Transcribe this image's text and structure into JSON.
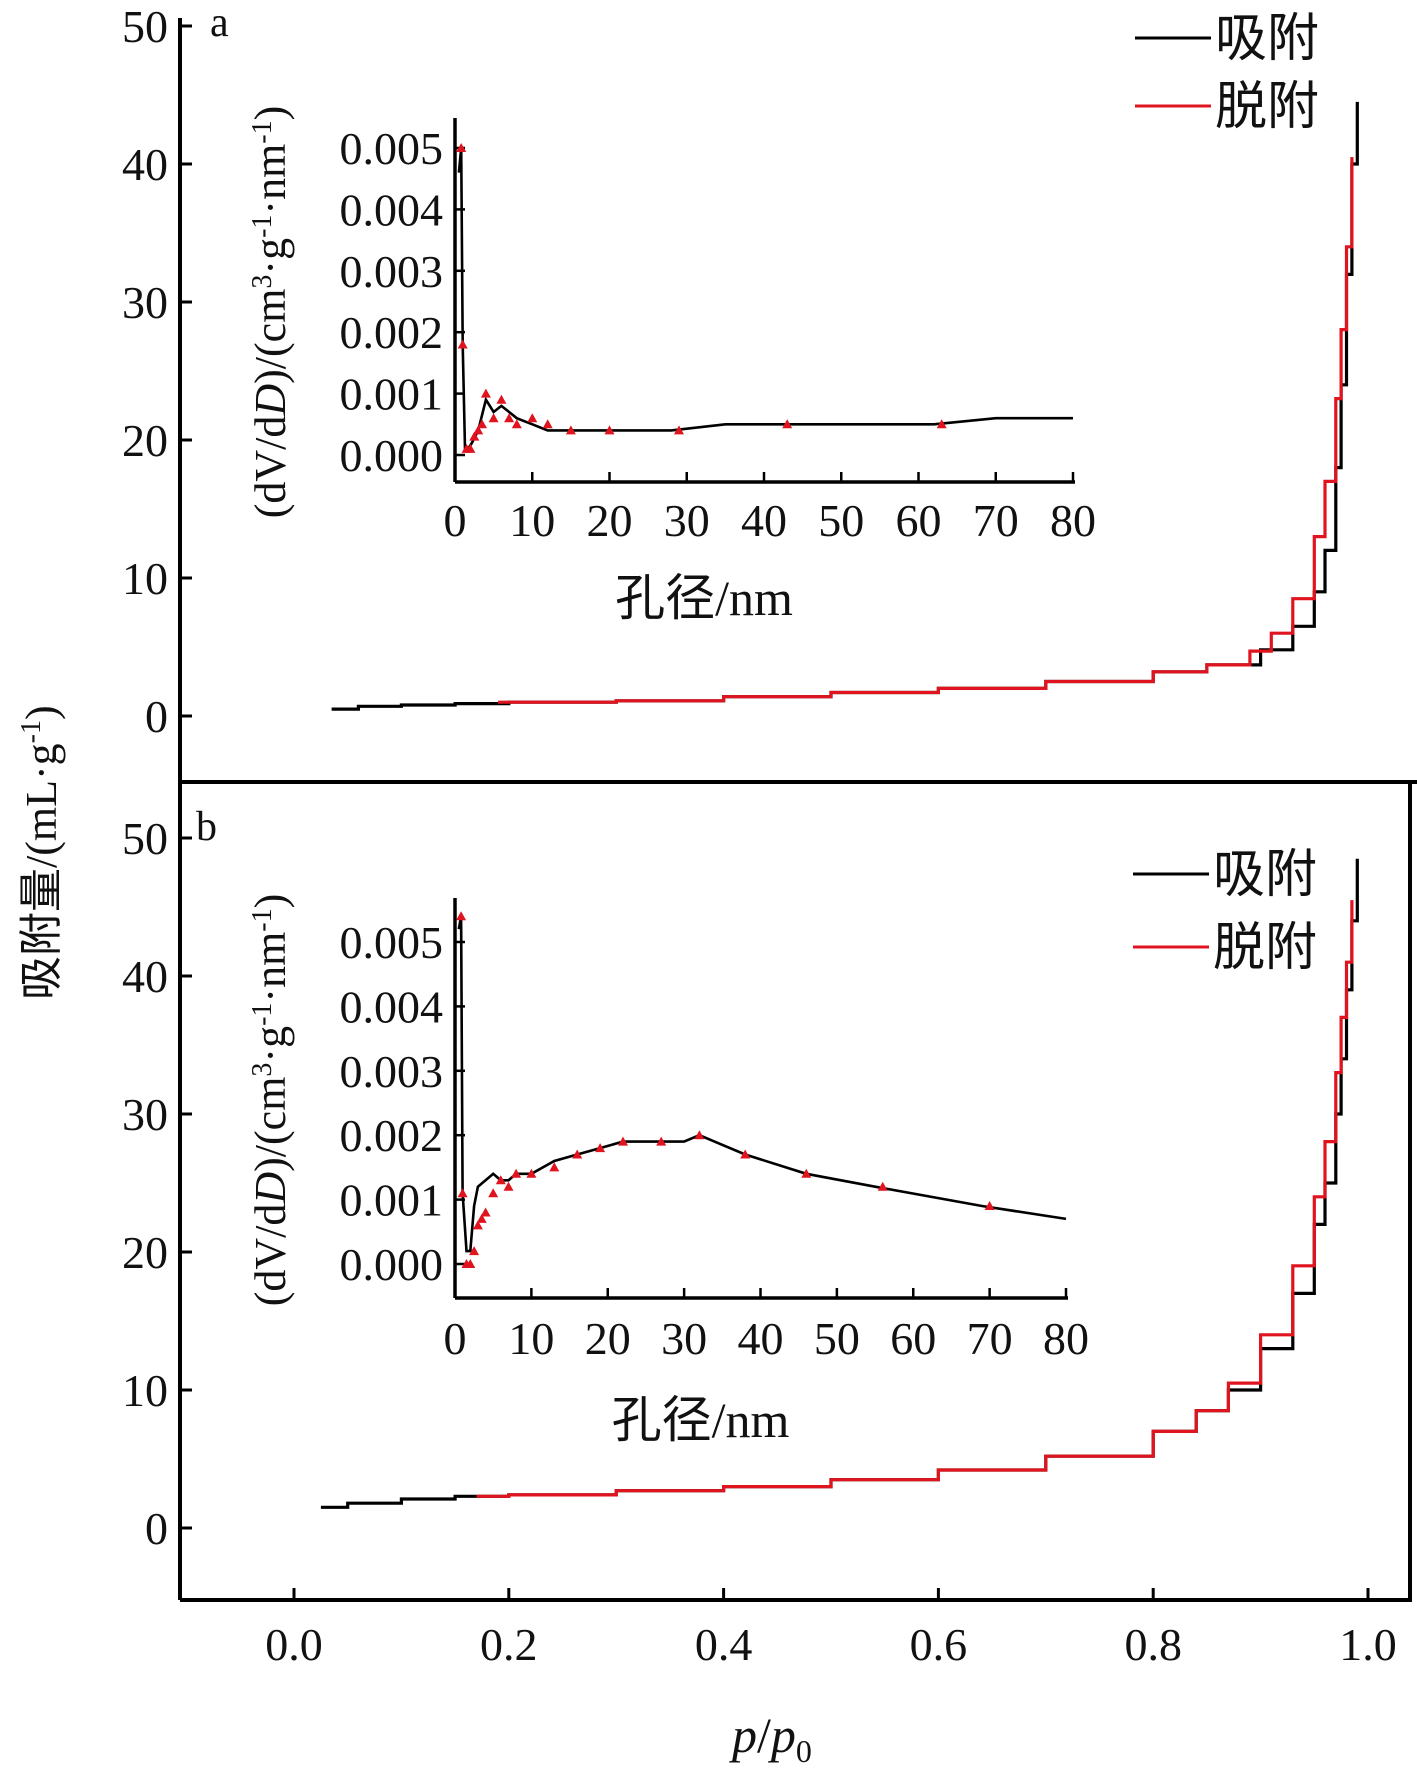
{
  "colors": {
    "adsorption": "#000000",
    "desorption": "#e0141e",
    "axis": "#000000"
  },
  "y_axis_title": "吸附量/(mL·g",
  "y_axis_title_sup": "-1",
  "y_axis_title_close": ")",
  "x_axis_title_p": "p",
  "x_axis_title_slash": "/",
  "x_axis_title_p0": "p",
  "x_axis_title_sub": "0",
  "inset_y_title_parts": [
    "(dV/d",
    "D",
    ")/(cm",
    "3",
    "·g",
    "-1",
    "·nm",
    "-1",
    ")"
  ],
  "inset_x_title": "孔径/nm",
  "chart_data": [
    {
      "type": "line",
      "panel_label": "a",
      "xlim": [
        -0.1,
        1.0
      ],
      "ylim": [
        -4.5,
        50
      ],
      "x_ticks": [
        "0.0",
        "0.2",
        "0.4",
        "0.6",
        "0.8",
        "1.0"
      ],
      "y_ticks": [
        "0",
        "10",
        "20",
        "30",
        "40",
        "50"
      ],
      "legend": {
        "position": "top-right",
        "entries": [
          "吸附",
          "脱附"
        ]
      },
      "series": [
        {
          "name": "吸附",
          "x": [
            0.035,
            0.06,
            0.1,
            0.15,
            0.2,
            0.3,
            0.4,
            0.5,
            0.6,
            0.7,
            0.8,
            0.85,
            0.9,
            0.93,
            0.95,
            0.96,
            0.97,
            0.975,
            0.98,
            0.985,
            0.99
          ],
          "y": [
            0.5,
            0.7,
            0.8,
            0.9,
            1.0,
            1.1,
            1.4,
            1.7,
            2.0,
            2.5,
            3.2,
            3.7,
            4.8,
            6.5,
            9.0,
            12.0,
            18.0,
            24.0,
            32.0,
            40.0,
            44.5
          ]
        },
        {
          "name": "脱附",
          "x": [
            0.19,
            0.3,
            0.4,
            0.5,
            0.6,
            0.7,
            0.8,
            0.85,
            0.89,
            0.91,
            0.93,
            0.95,
            0.96,
            0.97,
            0.975,
            0.98,
            0.985
          ],
          "y": [
            1.0,
            1.1,
            1.4,
            1.7,
            2.0,
            2.5,
            3.2,
            3.7,
            4.7,
            6.0,
            8.5,
            13.0,
            17.0,
            23.0,
            28.0,
            34.0,
            40.5
          ]
        }
      ],
      "inset": {
        "type": "line",
        "xlim": [
          0,
          80
        ],
        "ylim": [
          -0.0004,
          0.0055
        ],
        "x_ticks": [
          "0",
          "10",
          "20",
          "30",
          "40",
          "50",
          "60",
          "70",
          "80"
        ],
        "y_ticks": [
          "0.000",
          "0.001",
          "0.002",
          "0.003",
          "0.004",
          "0.005"
        ],
        "series": [
          {
            "name": "",
            "x": [
              0.5,
              0.8,
              1.0,
              1.3,
              1.7,
              2.2,
              3.0,
              4.0,
              5.0,
              6.0,
              7.0,
              8.0,
              10.0,
              12.0,
              15.0,
              20.0,
              28.0,
              35.0,
              42.0,
              50.0,
              62.0,
              70.0,
              80.0
            ],
            "y": [
              0.0046,
              0.005,
              0.0018,
              0.0001,
              0.0001,
              0.0002,
              0.0004,
              0.0009,
              0.0007,
              0.0008,
              0.0007,
              0.0006,
              0.0005,
              0.0004,
              0.0004,
              0.0004,
              0.0004,
              0.0005,
              0.0005,
              0.0005,
              0.0005,
              0.0006,
              0.0006
            ]
          }
        ],
        "markers": {
          "x": [
            0.8,
            1.0,
            1.5,
            2.0,
            2.5,
            3.0,
            3.5,
            4.0,
            5.0,
            6.0,
            7.0,
            8.0,
            10.0,
            12.0,
            15.0,
            20.0,
            29.0,
            43.0,
            63.0
          ],
          "y": [
            0.005,
            0.0018,
            0.0001,
            0.0001,
            0.0003,
            0.0004,
            0.0005,
            0.001,
            0.0006,
            0.0009,
            0.0006,
            0.0005,
            0.0006,
            0.0005,
            0.0004,
            0.0004,
            0.0004,
            0.0005,
            0.0005
          ]
        }
      }
    },
    {
      "type": "line",
      "panel_label": "b",
      "xlim": [
        -0.1,
        1.0
      ],
      "ylim": [
        -5,
        53
      ],
      "x_ticks": [
        "0.0",
        "0.2",
        "0.4",
        "0.6",
        "0.8",
        "1.0"
      ],
      "y_ticks": [
        "0",
        "10",
        "20",
        "30",
        "40",
        "50"
      ],
      "legend": {
        "position": "top-right",
        "entries": [
          "吸附",
          "脱附"
        ]
      },
      "series": [
        {
          "name": "吸附",
          "x": [
            0.025,
            0.05,
            0.1,
            0.15,
            0.2,
            0.3,
            0.4,
            0.5,
            0.6,
            0.7,
            0.8,
            0.84,
            0.87,
            0.9,
            0.93,
            0.95,
            0.96,
            0.97,
            0.975,
            0.98,
            0.985,
            0.99
          ],
          "y": [
            1.5,
            1.8,
            2.1,
            2.3,
            2.4,
            2.7,
            3.0,
            3.5,
            4.2,
            5.2,
            7.0,
            8.5,
            10.0,
            13.0,
            17.0,
            22.0,
            25.0,
            30.0,
            34.0,
            39.0,
            44.0,
            48.5
          ]
        },
        {
          "name": "脱附",
          "x": [
            0.17,
            0.2,
            0.3,
            0.4,
            0.5,
            0.6,
            0.7,
            0.8,
            0.84,
            0.87,
            0.9,
            0.93,
            0.95,
            0.96,
            0.97,
            0.975,
            0.98,
            0.985
          ],
          "y": [
            2.3,
            2.4,
            2.7,
            3.0,
            3.5,
            4.2,
            5.2,
            7.0,
            8.5,
            10.5,
            14.0,
            19.0,
            24.0,
            28.0,
            33.0,
            37.0,
            41.0,
            45.5
          ]
        }
      ],
      "inset": {
        "type": "line",
        "xlim": [
          0,
          80
        ],
        "ylim": [
          -0.0004,
          0.0055
        ],
        "x_ticks": [
          "0",
          "10",
          "20",
          "30",
          "40",
          "50",
          "60",
          "70",
          "80"
        ],
        "y_ticks": [
          "0.000",
          "0.001",
          "0.002",
          "0.003",
          "0.004",
          "0.005"
        ],
        "series": [
          {
            "name": "",
            "x": [
              0.5,
              0.8,
              1.0,
              1.5,
              2.0,
              2.5,
              3.0,
              4.0,
              5.0,
              6.0,
              7.0,
              8.0,
              10.0,
              13.0,
              16.0,
              19.0,
              22.0,
              25.0,
              30.0,
              32.0,
              38.0,
              46.0,
              55.0,
              69.0,
              80.0
            ],
            "y": [
              0.0052,
              0.0054,
              0.0011,
              0.0002,
              0.0002,
              0.0009,
              0.0012,
              0.0013,
              0.0014,
              0.0013,
              0.0013,
              0.0014,
              0.0014,
              0.0016,
              0.0017,
              0.0018,
              0.0019,
              0.0019,
              0.0019,
              0.002,
              0.0017,
              0.0014,
              0.0012,
              0.0009,
              0.0007
            ]
          }
        ],
        "markers": {
          "x": [
            0.8,
            1.0,
            1.5,
            2.0,
            2.5,
            3.0,
            3.5,
            4.0,
            5.0,
            6.0,
            7.0,
            8.0,
            10.0,
            13.0,
            16.0,
            19.0,
            22.0,
            27.0,
            32.0,
            38.0,
            46.0,
            56.0,
            70.0
          ],
          "y": [
            0.0054,
            0.0011,
            0.0,
            0.0,
            0.0002,
            0.0006,
            0.0007,
            0.0008,
            0.0011,
            0.0013,
            0.0012,
            0.0014,
            0.0014,
            0.0015,
            0.0017,
            0.0018,
            0.0019,
            0.0019,
            0.002,
            0.0017,
            0.0014,
            0.0012,
            0.0009
          ]
        }
      }
    }
  ]
}
